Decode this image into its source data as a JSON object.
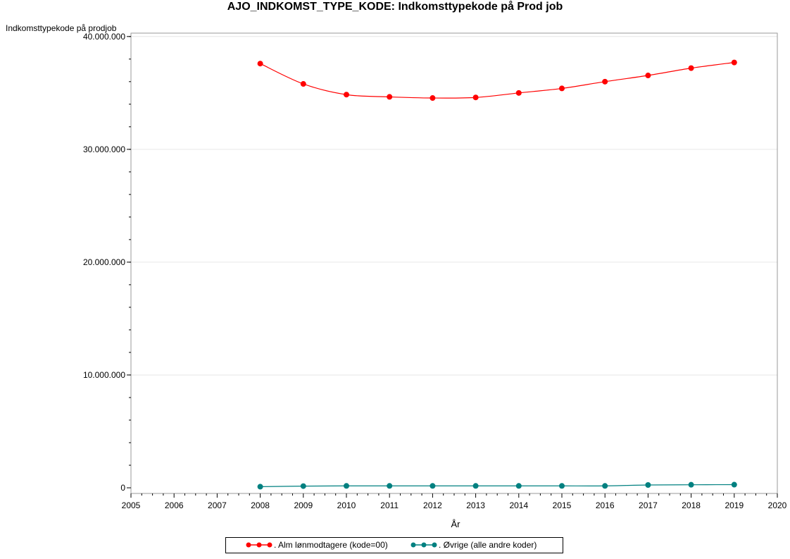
{
  "chart_data": {
    "type": "line",
    "title": "AJO_INDKOMST_TYPE_KODE: Indkomsttypekode på Prod job",
    "ylabel": "Indkomsttypekode på prodjob",
    "xlabel": "År",
    "xlim": [
      2005,
      2020
    ],
    "ylim": [
      -500000,
      40300000
    ],
    "x_ticks": [
      "2005",
      "2006",
      "2007",
      "2008",
      "2009",
      "2010",
      "2011",
      "2012",
      "2013",
      "2014",
      "2015",
      "2016",
      "2017",
      "2018",
      "2019",
      "2020"
    ],
    "y_ticks": [
      {
        "value": 0,
        "label": "0"
      },
      {
        "value": 10000000,
        "label": "10.000.000"
      },
      {
        "value": 20000000,
        "label": "20.000.000"
      },
      {
        "value": 30000000,
        "label": "30.000.000"
      },
      {
        "value": 40000000,
        "label": "40.000.000"
      }
    ],
    "grid": true,
    "legend_position": "bottom",
    "series": [
      {
        "name": ". Alm lønmodtagere (kode=00)",
        "color": "#ff0000",
        "x": [
          2008,
          2009,
          2010,
          2011,
          2012,
          2013,
          2014,
          2015,
          2016,
          2017,
          2018,
          2019
        ],
        "values": [
          37600000,
          35800000,
          34850000,
          34650000,
          34550000,
          34600000,
          35000000,
          35400000,
          36000000,
          36550000,
          37200000,
          37700000
        ]
      },
      {
        "name": ". Øvrige (alle andre koder)",
        "color": "#008080",
        "x": [
          2008,
          2009,
          2010,
          2011,
          2012,
          2013,
          2014,
          2015,
          2016,
          2017,
          2018,
          2019
        ],
        "values": [
          100000,
          150000,
          170000,
          170000,
          170000,
          170000,
          170000,
          170000,
          170000,
          250000,
          270000,
          280000
        ]
      }
    ]
  }
}
